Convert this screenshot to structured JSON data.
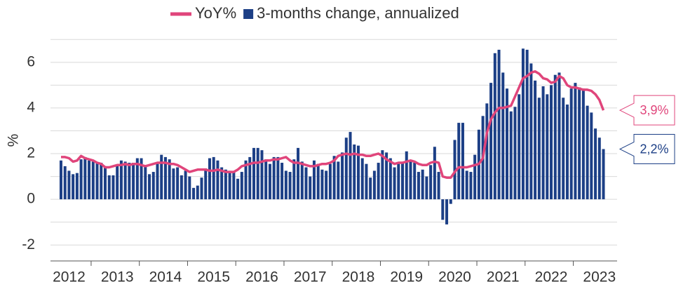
{
  "chart_data": {
    "type": "bar_line",
    "y_label": "%",
    "categories": [
      null,
      null,
      "2012",
      null,
      null,
      null,
      null,
      null,
      null,
      null,
      null,
      null,
      null,
      null,
      "2013",
      null,
      null,
      null,
      null,
      null,
      null,
      null,
      null,
      null,
      null,
      null,
      "2014",
      null,
      null,
      null,
      null,
      null,
      null,
      null,
      null,
      null,
      null,
      null,
      "2015",
      null,
      null,
      null,
      null,
      null,
      null,
      null,
      null,
      null,
      null,
      null,
      "2016",
      null,
      null,
      null,
      null,
      null,
      null,
      null,
      null,
      null,
      null,
      null,
      "2017",
      null,
      null,
      null,
      null,
      null,
      null,
      null,
      null,
      null,
      null,
      null,
      "2018",
      null,
      null,
      null,
      null,
      null,
      null,
      null,
      null,
      null,
      null,
      null,
      "2019",
      null,
      null,
      null,
      null,
      null,
      null,
      null,
      null,
      null,
      null,
      null,
      "2020",
      null,
      null,
      null,
      null,
      null,
      null,
      null,
      null,
      null,
      null,
      null,
      "2021",
      null,
      null,
      null,
      null,
      null,
      null,
      null,
      null,
      null,
      null,
      null,
      "2022",
      null,
      null,
      null,
      null,
      null,
      null,
      null,
      null,
      null,
      null,
      null,
      "2023",
      null
    ],
    "series": [
      {
        "name": "YoY%",
        "type": "line",
        "color": "#e0457b",
        "end_label": "3,9%",
        "values": [
          1.85,
          1.85,
          1.8,
          1.65,
          1.7,
          1.9,
          1.8,
          1.75,
          1.7,
          1.6,
          1.55,
          1.4,
          1.4,
          1.45,
          1.5,
          1.5,
          1.55,
          1.5,
          1.55,
          1.55,
          1.5,
          1.45,
          1.5,
          1.55,
          1.6,
          1.6,
          1.6,
          1.55,
          1.55,
          1.5,
          1.4,
          1.3,
          1.2,
          1.25,
          1.3,
          1.3,
          1.3,
          1.25,
          1.25,
          1.3,
          1.25,
          1.2,
          1.2,
          1.2,
          1.3,
          1.45,
          1.5,
          1.55,
          1.6,
          1.6,
          1.65,
          1.7,
          1.7,
          1.75,
          1.75,
          1.8,
          1.85,
          1.7,
          1.6,
          1.6,
          1.55,
          1.5,
          1.45,
          1.45,
          1.5,
          1.55,
          1.55,
          1.6,
          1.7,
          1.9,
          1.95,
          2.0,
          1.95,
          2.0,
          1.95,
          1.95,
          1.9,
          1.9,
          1.95,
          2.0,
          1.9,
          1.75,
          1.65,
          1.55,
          1.6,
          1.6,
          1.65,
          1.7,
          1.65,
          1.55,
          1.5,
          1.5,
          1.6,
          1.65,
          1.6,
          1.0,
          0.95,
          0.95,
          1.2,
          1.4,
          1.4,
          1.4,
          1.45,
          1.5,
          1.55,
          1.8,
          2.9,
          3.5,
          3.8,
          4.0,
          4.0,
          4.05,
          4.1,
          4.5,
          4.9,
          5.3,
          5.4,
          5.55,
          5.6,
          5.5,
          5.3,
          5.25,
          5.1,
          5.15,
          5.4,
          5.3,
          5.0,
          4.9,
          4.9,
          4.85,
          4.8,
          4.8,
          4.75,
          4.6,
          4.35,
          3.9
        ]
      },
      {
        "name": "3-months change, annualized",
        "type": "bar",
        "color": "#1c3f86",
        "end_label": "2,2%",
        "values": [
          1.7,
          1.45,
          1.25,
          1.1,
          1.15,
          1.75,
          1.85,
          1.7,
          1.65,
          1.6,
          1.6,
          1.45,
          1.05,
          1.05,
          1.5,
          1.7,
          1.65,
          1.6,
          1.6,
          1.8,
          1.8,
          1.45,
          1.1,
          1.2,
          1.55,
          1.95,
          1.85,
          1.75,
          1.35,
          1.4,
          1.05,
          1.25,
          1.0,
          0.5,
          0.6,
          0.95,
          1.35,
          1.8,
          1.85,
          1.7,
          1.4,
          1.3,
          1.25,
          1.2,
          0.9,
          1.2,
          1.7,
          1.85,
          2.25,
          2.25,
          2.15,
          1.75,
          1.55,
          1.85,
          1.85,
          1.6,
          1.25,
          1.2,
          1.75,
          2.25,
          1.65,
          1.4,
          1.0,
          1.7,
          1.55,
          1.3,
          1.25,
          1.55,
          1.9,
          1.65,
          2.05,
          2.7,
          2.95,
          2.4,
          2.35,
          1.8,
          1.55,
          0.95,
          1.25,
          1.6,
          2.15,
          2.05,
          1.8,
          1.4,
          1.55,
          1.6,
          2.1,
          1.7,
          1.6,
          1.2,
          1.3,
          1.0,
          1.5,
          2.3,
          1.2,
          -0.9,
          -1.1,
          -0.2,
          2.6,
          3.35,
          3.35,
          1.25,
          1.2,
          1.95,
          3.05,
          3.65,
          4.2,
          5.1,
          6.4,
          6.55,
          5.55,
          4.85,
          3.85,
          4.05,
          4.6,
          6.6,
          6.55,
          5.95,
          5.2,
          4.45,
          4.95,
          4.6,
          5.0,
          5.45,
          5.55,
          4.45,
          4.15,
          4.85,
          5.1,
          4.9,
          4.85,
          4.1,
          3.8,
          3.1,
          2.7,
          2.2
        ]
      }
    ],
    "ylim": [
      -2.7,
      7.5
    ],
    "yticks": [
      -2,
      0,
      2,
      4,
      6
    ],
    "minor_yticks": [
      -1,
      1,
      3,
      5,
      7
    ],
    "grid": true
  }
}
